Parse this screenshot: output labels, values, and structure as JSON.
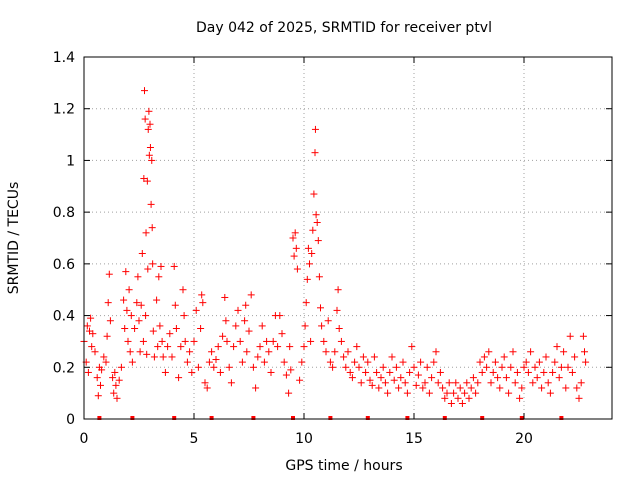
{
  "chart_data": {
    "type": "scatter",
    "title": "Day 042 of 2025, SRMTID for receiver ptvl",
    "xlabel": "GPS time / hours",
    "ylabel": "SRMTID / TECUs",
    "xlim": [
      0,
      24
    ],
    "ylim": [
      0,
      1.4
    ],
    "xticks": [
      0,
      5,
      10,
      15,
      20
    ],
    "xtick_labels": [
      "0",
      "5",
      "10",
      "15",
      "20"
    ],
    "yticks": [
      0,
      0.2,
      0.4,
      0.6,
      0.8,
      1.0,
      1.2,
      1.4
    ],
    "ytick_labels": [
      "0",
      "0.2",
      "0.4",
      "0.6",
      "0.8",
      "1",
      "1.2",
      "1.4"
    ],
    "grid": true,
    "marker": "+",
    "series": [
      {
        "name": "SRMTID",
        "color": "#ff0000",
        "points": [
          [
            0.0,
            0.3
          ],
          [
            0.1,
            0.22
          ],
          [
            0.15,
            0.36
          ],
          [
            0.2,
            0.18
          ],
          [
            0.25,
            0.34
          ],
          [
            0.3,
            0.39
          ],
          [
            0.35,
            0.28
          ],
          [
            0.4,
            0.33
          ],
          [
            0.5,
            0.26
          ],
          [
            0.6,
            0.16
          ],
          [
            0.65,
            0.09
          ],
          [
            0.7,
            0.2
          ],
          [
            0.75,
            0.13
          ],
          [
            0.8,
            0.19
          ],
          [
            0.9,
            0.24
          ],
          [
            1.0,
            0.22
          ],
          [
            1.05,
            0.32
          ],
          [
            1.1,
            0.45
          ],
          [
            1.15,
            0.56
          ],
          [
            1.2,
            0.38
          ],
          [
            1.3,
            0.16
          ],
          [
            1.35,
            0.1
          ],
          [
            1.4,
            0.18
          ],
          [
            1.45,
            0.13
          ],
          [
            1.5,
            0.08
          ],
          [
            1.6,
            0.15
          ],
          [
            1.7,
            0.2
          ],
          [
            1.8,
            0.46
          ],
          [
            1.85,
            0.35
          ],
          [
            1.9,
            0.57
          ],
          [
            1.95,
            0.42
          ],
          [
            2.0,
            0.3
          ],
          [
            2.05,
            0.5
          ],
          [
            2.1,
            0.26
          ],
          [
            2.15,
            0.4
          ],
          [
            2.2,
            0.22
          ],
          [
            2.3,
            0.35
          ],
          [
            2.4,
            0.45
          ],
          [
            2.45,
            0.55
          ],
          [
            2.5,
            0.38
          ],
          [
            2.55,
            0.26
          ],
          [
            2.6,
            0.44
          ],
          [
            2.65,
            0.64
          ],
          [
            2.7,
            0.3
          ],
          [
            2.72,
            0.93
          ],
          [
            2.75,
            1.27
          ],
          [
            2.78,
            1.16
          ],
          [
            2.8,
            0.4
          ],
          [
            2.82,
            0.72
          ],
          [
            2.85,
            0.25
          ],
          [
            2.88,
            0.92
          ],
          [
            2.9,
            0.58
          ],
          [
            2.92,
            1.12
          ],
          [
            2.95,
            1.19
          ],
          [
            2.97,
            1.02
          ],
          [
            3.0,
            1.14
          ],
          [
            3.02,
            1.05
          ],
          [
            3.05,
            0.83
          ],
          [
            3.08,
            1.0
          ],
          [
            3.1,
            0.74
          ],
          [
            3.12,
            0.6
          ],
          [
            3.15,
            0.34
          ],
          [
            3.2,
            0.24
          ],
          [
            3.3,
            0.46
          ],
          [
            3.35,
            0.28
          ],
          [
            3.4,
            0.55
          ],
          [
            3.45,
            0.36
          ],
          [
            3.5,
            0.59
          ],
          [
            3.55,
            0.3
          ],
          [
            3.6,
            0.24
          ],
          [
            3.7,
            0.18
          ],
          [
            3.8,
            0.28
          ],
          [
            3.9,
            0.33
          ],
          [
            4.0,
            0.24
          ],
          [
            4.1,
            0.59
          ],
          [
            4.15,
            0.44
          ],
          [
            4.2,
            0.35
          ],
          [
            4.3,
            0.16
          ],
          [
            4.4,
            0.28
          ],
          [
            4.5,
            0.5
          ],
          [
            4.55,
            0.4
          ],
          [
            4.6,
            0.3
          ],
          [
            4.7,
            0.22
          ],
          [
            4.8,
            0.26
          ],
          [
            4.9,
            0.18
          ],
          [
            5.0,
            0.3
          ],
          [
            5.1,
            0.42
          ],
          [
            5.2,
            0.2
          ],
          [
            5.3,
            0.35
          ],
          [
            5.35,
            0.48
          ],
          [
            5.4,
            0.45
          ],
          [
            5.5,
            0.14
          ],
          [
            5.6,
            0.12
          ],
          [
            5.7,
            0.22
          ],
          [
            5.8,
            0.26
          ],
          [
            5.9,
            0.2
          ],
          [
            6.0,
            0.23
          ],
          [
            6.1,
            0.28
          ],
          [
            6.2,
            0.18
          ],
          [
            6.3,
            0.32
          ],
          [
            6.4,
            0.47
          ],
          [
            6.45,
            0.38
          ],
          [
            6.5,
            0.3
          ],
          [
            6.6,
            0.2
          ],
          [
            6.7,
            0.14
          ],
          [
            6.8,
            0.28
          ],
          [
            6.9,
            0.36
          ],
          [
            7.0,
            0.42
          ],
          [
            7.1,
            0.3
          ],
          [
            7.2,
            0.22
          ],
          [
            7.3,
            0.38
          ],
          [
            7.35,
            0.44
          ],
          [
            7.4,
            0.26
          ],
          [
            7.5,
            0.34
          ],
          [
            7.6,
            0.48
          ],
          [
            7.7,
            0.2
          ],
          [
            7.8,
            0.12
          ],
          [
            7.9,
            0.24
          ],
          [
            8.0,
            0.28
          ],
          [
            8.1,
            0.36
          ],
          [
            8.2,
            0.22
          ],
          [
            8.3,
            0.3
          ],
          [
            8.4,
            0.26
          ],
          [
            8.5,
            0.18
          ],
          [
            8.6,
            0.3
          ],
          [
            8.7,
            0.4
          ],
          [
            8.8,
            0.28
          ],
          [
            8.9,
            0.4
          ],
          [
            9.0,
            0.33
          ],
          [
            9.1,
            0.22
          ],
          [
            9.2,
            0.17
          ],
          [
            9.3,
            0.1
          ],
          [
            9.35,
            0.28
          ],
          [
            9.4,
            0.19
          ],
          [
            9.5,
            0.7
          ],
          [
            9.55,
            0.63
          ],
          [
            9.6,
            0.72
          ],
          [
            9.65,
            0.66
          ],
          [
            9.7,
            0.58
          ],
          [
            9.8,
            0.15
          ],
          [
            9.9,
            0.22
          ],
          [
            10.0,
            0.28
          ],
          [
            10.05,
            0.36
          ],
          [
            10.1,
            0.45
          ],
          [
            10.15,
            0.54
          ],
          [
            10.2,
            0.66
          ],
          [
            10.25,
            0.6
          ],
          [
            10.3,
            0.3
          ],
          [
            10.35,
            0.64
          ],
          [
            10.4,
            0.73
          ],
          [
            10.45,
            0.87
          ],
          [
            10.5,
            1.03
          ],
          [
            10.52,
            1.12
          ],
          [
            10.55,
            0.79
          ],
          [
            10.6,
            0.76
          ],
          [
            10.65,
            0.69
          ],
          [
            10.7,
            0.55
          ],
          [
            10.75,
            0.43
          ],
          [
            10.8,
            0.36
          ],
          [
            10.9,
            0.3
          ],
          [
            11.0,
            0.26
          ],
          [
            11.1,
            0.38
          ],
          [
            11.2,
            0.22
          ],
          [
            11.3,
            0.2
          ],
          [
            11.4,
            0.26
          ],
          [
            11.5,
            0.42
          ],
          [
            11.55,
            0.5
          ],
          [
            11.6,
            0.35
          ],
          [
            11.7,
            0.3
          ],
          [
            11.8,
            0.24
          ],
          [
            11.9,
            0.2
          ],
          [
            12.0,
            0.26
          ],
          [
            12.1,
            0.18
          ],
          [
            12.2,
            0.16
          ],
          [
            12.3,
            0.22
          ],
          [
            12.4,
            0.28
          ],
          [
            12.5,
            0.2
          ],
          [
            12.6,
            0.14
          ],
          [
            12.7,
            0.24
          ],
          [
            12.8,
            0.18
          ],
          [
            12.9,
            0.22
          ],
          [
            13.0,
            0.15
          ],
          [
            13.1,
            0.13
          ],
          [
            13.2,
            0.24
          ],
          [
            13.3,
            0.18
          ],
          [
            13.4,
            0.12
          ],
          [
            13.5,
            0.16
          ],
          [
            13.6,
            0.2
          ],
          [
            13.7,
            0.14
          ],
          [
            13.8,
            0.1
          ],
          [
            13.9,
            0.18
          ],
          [
            14.0,
            0.24
          ],
          [
            14.1,
            0.15
          ],
          [
            14.2,
            0.2
          ],
          [
            14.3,
            0.12
          ],
          [
            14.4,
            0.16
          ],
          [
            14.5,
            0.22
          ],
          [
            14.6,
            0.14
          ],
          [
            14.7,
            0.1
          ],
          [
            14.8,
            0.18
          ],
          [
            14.9,
            0.28
          ],
          [
            15.0,
            0.2
          ],
          [
            15.1,
            0.13
          ],
          [
            15.2,
            0.17
          ],
          [
            15.3,
            0.22
          ],
          [
            15.4,
            0.12
          ],
          [
            15.5,
            0.14
          ],
          [
            15.6,
            0.2
          ],
          [
            15.7,
            0.1
          ],
          [
            15.8,
            0.16
          ],
          [
            15.9,
            0.22
          ],
          [
            16.0,
            0.26
          ],
          [
            16.1,
            0.14
          ],
          [
            16.2,
            0.18
          ],
          [
            16.3,
            0.12
          ],
          [
            16.4,
            0.08
          ],
          [
            16.5,
            0.1
          ],
          [
            16.6,
            0.14
          ],
          [
            16.7,
            0.06
          ],
          [
            16.8,
            0.1
          ],
          [
            16.9,
            0.14
          ],
          [
            17.0,
            0.08
          ],
          [
            17.1,
            0.12
          ],
          [
            17.2,
            0.06
          ],
          [
            17.3,
            0.1
          ],
          [
            17.4,
            0.14
          ],
          [
            17.5,
            0.08
          ],
          [
            17.6,
            0.12
          ],
          [
            17.7,
            0.16
          ],
          [
            17.8,
            0.1
          ],
          [
            17.9,
            0.14
          ],
          [
            18.0,
            0.22
          ],
          [
            18.1,
            0.18
          ],
          [
            18.2,
            0.24
          ],
          [
            18.3,
            0.2
          ],
          [
            18.4,
            0.26
          ],
          [
            18.5,
            0.14
          ],
          [
            18.6,
            0.18
          ],
          [
            18.7,
            0.22
          ],
          [
            18.8,
            0.16
          ],
          [
            18.9,
            0.12
          ],
          [
            19.0,
            0.2
          ],
          [
            19.1,
            0.24
          ],
          [
            19.2,
            0.16
          ],
          [
            19.3,
            0.1
          ],
          [
            19.4,
            0.2
          ],
          [
            19.5,
            0.26
          ],
          [
            19.6,
            0.14
          ],
          [
            19.7,
            0.18
          ],
          [
            19.8,
            0.08
          ],
          [
            19.9,
            0.12
          ],
          [
            20.0,
            0.2
          ],
          [
            20.1,
            0.22
          ],
          [
            20.2,
            0.18
          ],
          [
            20.3,
            0.26
          ],
          [
            20.4,
            0.14
          ],
          [
            20.5,
            0.2
          ],
          [
            20.6,
            0.16
          ],
          [
            20.7,
            0.22
          ],
          [
            20.8,
            0.12
          ],
          [
            20.9,
            0.18
          ],
          [
            21.0,
            0.24
          ],
          [
            21.1,
            0.14
          ],
          [
            21.2,
            0.1
          ],
          [
            21.3,
            0.18
          ],
          [
            21.4,
            0.22
          ],
          [
            21.5,
            0.28
          ],
          [
            21.6,
            0.16
          ],
          [
            21.7,
            0.2
          ],
          [
            21.8,
            0.26
          ],
          [
            21.9,
            0.12
          ],
          [
            22.0,
            0.2
          ],
          [
            22.1,
            0.32
          ],
          [
            22.2,
            0.18
          ],
          [
            22.3,
            0.24
          ],
          [
            22.4,
            0.12
          ],
          [
            22.5,
            0.08
          ],
          [
            22.6,
            0.14
          ],
          [
            22.7,
            0.32
          ],
          [
            22.75,
            0.26
          ],
          [
            22.8,
            0.22
          ]
        ]
      },
      {
        "name": "markers",
        "color": "#ff0000",
        "x": [
          0.7,
          2.2,
          4.1,
          5.8,
          7.7,
          9.5,
          11.2,
          12.9,
          14.7,
          16.4,
          18.1,
          19.9,
          21.7
        ]
      }
    ]
  }
}
